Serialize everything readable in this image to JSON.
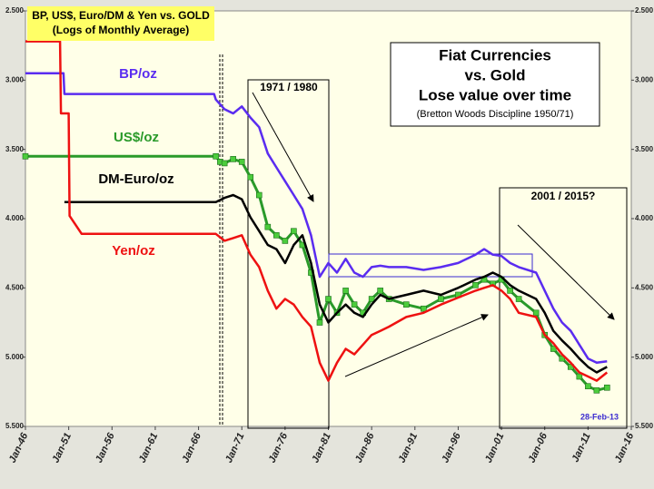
{
  "chart_data": {
    "type": "line",
    "title": "BP, US$, Euro/DM & Yen vs. GOLD",
    "subtitle": "(Logs of Monthly Average)",
    "annotations": {
      "box_title": "Fiat Currencies",
      "box_line2": "vs. Gold",
      "box_line3": "Lose value over time",
      "box_note": "(Bretton Woods Discipline 1950/71)",
      "period1": "1971 / 1980",
      "period2": "2001 / 2015?",
      "date": "28-Feb-13"
    },
    "xlim": [
      1946,
      2016
    ],
    "xticks": [
      {
        "value": 1946,
        "label": "Jan-46"
      },
      {
        "value": 1951,
        "label": "Jan-51"
      },
      {
        "value": 1956,
        "label": "Jan-56"
      },
      {
        "value": 1961,
        "label": "Jan-61"
      },
      {
        "value": 1966,
        "label": "Jan-66"
      },
      {
        "value": 1971,
        "label": "Jan-71"
      },
      {
        "value": 1976,
        "label": "Jan-76"
      },
      {
        "value": 1981,
        "label": "Jan-81"
      },
      {
        "value": 1986,
        "label": "Jan-86"
      },
      {
        "value": 1991,
        "label": "Jan-91"
      },
      {
        "value": 1996,
        "label": "Jan-96"
      },
      {
        "value": 2001,
        "label": "Jan-01"
      },
      {
        "value": 2006,
        "label": "Jan-06"
      },
      {
        "value": 2011,
        "label": "Jan-11"
      },
      {
        "value": 2016,
        "label": "Jan-16"
      }
    ],
    "ylim": [
      5.5,
      2.5
    ],
    "yticks": [
      {
        "value": 2.5,
        "label": "2.500"
      },
      {
        "value": 3.0,
        "label": "3.000"
      },
      {
        "value": 3.5,
        "label": "3.500"
      },
      {
        "value": 4.0,
        "label": "4.000"
      },
      {
        "value": 4.5,
        "label": "4.500"
      },
      {
        "value": 5.0,
        "label": "5.000"
      },
      {
        "value": 5.5,
        "label": "5.500"
      }
    ],
    "y2lim": [
      5.5,
      2.5
    ],
    "y2ticks": [
      {
        "value": 2.5,
        "label": "2.500"
      },
      {
        "value": 3.0,
        "label": "3.000"
      },
      {
        "value": 3.5,
        "label": "3.500"
      },
      {
        "value": 4.0,
        "label": "4.000"
      },
      {
        "value": 4.5,
        "label": "4.500"
      },
      {
        "value": 5.0,
        "label": "5.000"
      },
      {
        "value": 5.5,
        "label": "5.500"
      }
    ],
    "series": [
      {
        "name": "BP/oz",
        "color": "#5a2cf0",
        "x": [
          1946,
          1950.4,
          1950.5,
          1967.8,
          1968,
          1969,
          1970,
          1971,
          1972,
          1973,
          1974,
          1975,
          1976,
          1977,
          1978,
          1979,
          1980,
          1981,
          1982,
          1983,
          1984,
          1985,
          1986,
          1987,
          1988,
          1990,
          1992,
          1994,
          1996,
          1998,
          1999,
          2000,
          2001,
          2002,
          2003,
          2005,
          2006,
          2007,
          2008,
          2009,
          2010,
          2011,
          2012,
          2013.2
        ],
        "values": [
          2.95,
          2.95,
          3.1,
          3.1,
          3.14,
          3.21,
          3.24,
          3.19,
          3.27,
          3.34,
          3.53,
          3.63,
          3.73,
          3.83,
          3.93,
          4.12,
          4.42,
          4.32,
          4.39,
          4.29,
          4.39,
          4.42,
          4.35,
          4.34,
          4.35,
          4.35,
          4.37,
          4.35,
          4.32,
          4.26,
          4.22,
          4.26,
          4.27,
          4.32,
          4.35,
          4.39,
          4.52,
          4.65,
          4.75,
          4.81,
          4.91,
          5.01,
          5.04,
          5.03
        ]
      },
      {
        "name": "US$/oz",
        "color": "#2a9a2a",
        "x": [
          1946,
          1968,
          1968.5,
          1969,
          1970,
          1971,
          1972,
          1973,
          1974,
          1975,
          1976,
          1977,
          1978,
          1979,
          1980,
          1981,
          1982,
          1983,
          1984,
          1985,
          1986,
          1987,
          1988,
          1990,
          1992,
          1994,
          1996,
          1998,
          1999,
          2000,
          2001,
          2002,
          2003,
          2005,
          2006,
          2007,
          2008,
          2009,
          2010,
          2011,
          2012,
          2013.2
        ],
        "values": [
          3.55,
          3.55,
          3.59,
          3.6,
          3.57,
          3.59,
          3.7,
          3.83,
          4.06,
          4.12,
          4.16,
          4.09,
          4.19,
          4.39,
          4.75,
          4.58,
          4.68,
          4.52,
          4.62,
          4.68,
          4.58,
          4.52,
          4.58,
          4.62,
          4.65,
          4.58,
          4.55,
          4.48,
          4.44,
          4.47,
          4.44,
          4.52,
          4.58,
          4.68,
          4.84,
          4.94,
          5.01,
          5.07,
          5.14,
          5.21,
          5.24,
          5.22
        ]
      },
      {
        "name": "DM-Euro/oz",
        "color": "#000000",
        "x": [
          1950.5,
          1968,
          1969,
          1970,
          1971,
          1972,
          1973,
          1974,
          1975,
          1976,
          1977,
          1978,
          1979,
          1980,
          1981,
          1982,
          1983,
          1984,
          1985,
          1986,
          1987,
          1988,
          1990,
          1992,
          1994,
          1996,
          1998,
          1999,
          2000,
          2001,
          2002,
          2003,
          2005,
          2006,
          2007,
          2008,
          2009,
          2010,
          2011,
          2012,
          2013.2
        ],
        "values": [
          3.88,
          3.88,
          3.85,
          3.83,
          3.86,
          3.99,
          4.09,
          4.19,
          4.22,
          4.32,
          4.19,
          4.12,
          4.32,
          4.62,
          4.75,
          4.68,
          4.62,
          4.68,
          4.71,
          4.62,
          4.55,
          4.58,
          4.55,
          4.52,
          4.55,
          4.5,
          4.44,
          4.42,
          4.39,
          4.42,
          4.48,
          4.52,
          4.58,
          4.68,
          4.81,
          4.88,
          4.94,
          5.01,
          5.07,
          5.11,
          5.07
        ]
      },
      {
        "name": "Yen/oz",
        "color": "#ee1111",
        "x": [
          1946,
          1950,
          1950.1,
          1951,
          1951.1,
          1952.5,
          1968,
          1969,
          1970,
          1971,
          1972,
          1973,
          1974,
          1975,
          1976,
          1977,
          1978,
          1979,
          1980,
          1981,
          1982,
          1983,
          1984,
          1985,
          1986,
          1987,
          1988,
          1990,
          1992,
          1994,
          1996,
          1998,
          1999,
          2000,
          2001,
          2002,
          2003,
          2005,
          2006,
          2007,
          2008,
          2009,
          2010,
          2011,
          2012,
          2013.2
        ],
        "values": [
          2.72,
          2.72,
          3.24,
          3.24,
          3.98,
          4.11,
          4.11,
          4.16,
          4.14,
          4.12,
          4.26,
          4.35,
          4.52,
          4.65,
          4.58,
          4.62,
          4.71,
          4.78,
          5.04,
          5.17,
          5.04,
          4.94,
          4.98,
          4.91,
          4.84,
          4.81,
          4.78,
          4.71,
          4.68,
          4.62,
          4.57,
          4.52,
          4.5,
          4.48,
          4.52,
          4.58,
          4.68,
          4.71,
          4.84,
          4.9,
          4.98,
          5.04,
          5.11,
          5.14,
          5.17,
          5.11
        ]
      }
    ]
  }
}
